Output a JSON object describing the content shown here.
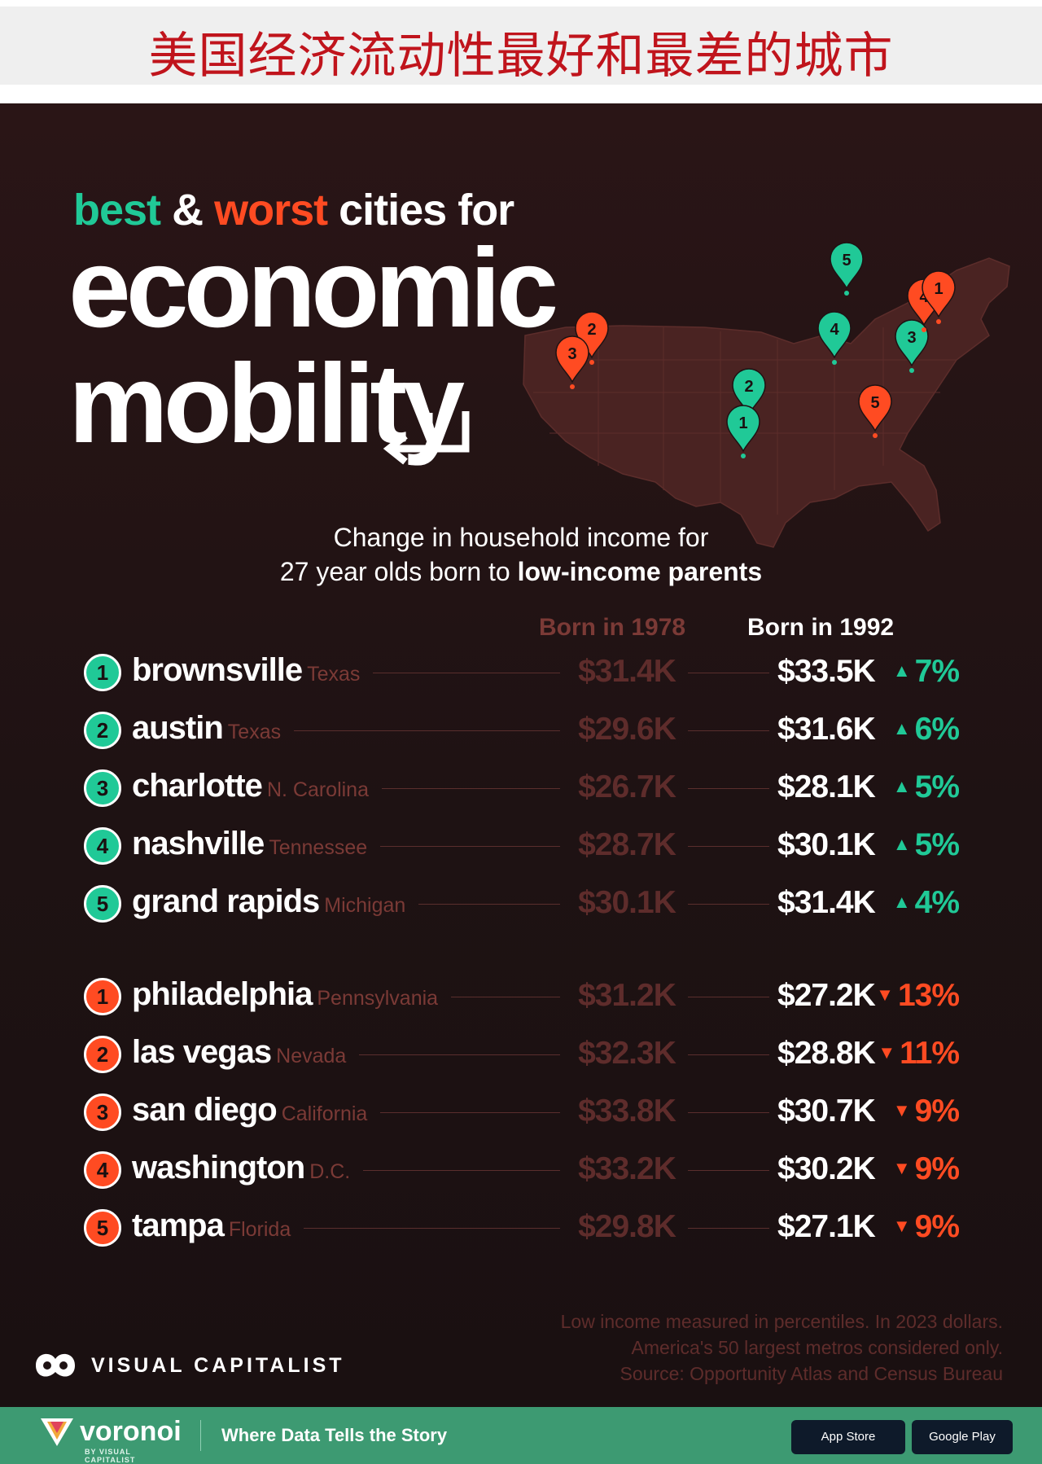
{
  "banner": {
    "title": "美国经济流动性最好和最差的城市"
  },
  "header": {
    "best_word": "best",
    "amp": "&",
    "worst_word": "worst",
    "rest": "cities for",
    "line2": "economic",
    "line3": "mobility"
  },
  "subtitle": {
    "line1": "Change in household income for",
    "line2_plain": "27 year olds born to",
    "line2_bold": "low-income parents"
  },
  "colors": {
    "best": "#20c997",
    "worst": "#ff4b22",
    "muted": "#7b3a36"
  },
  "chart_data": {
    "type": "table",
    "columns": [
      "Born in 1978",
      "Born in 1992"
    ],
    "best": [
      {
        "rank": "1",
        "city": "brownsville",
        "state": "Texas",
        "v1978": "$31.4K",
        "v1992": "$33.5K",
        "change": "7%",
        "direction": "up"
      },
      {
        "rank": "2",
        "city": "austin",
        "state": "Texas",
        "v1978": "$29.6K",
        "v1992": "$31.6K",
        "change": "6%",
        "direction": "up"
      },
      {
        "rank": "3",
        "city": "charlotte",
        "state": "N. Carolina",
        "v1978": "$26.7K",
        "v1992": "$28.1K",
        "change": "5%",
        "direction": "up"
      },
      {
        "rank": "4",
        "city": "nashville",
        "state": "Tennessee",
        "v1978": "$28.7K",
        "v1992": "$30.1K",
        "change": "5%",
        "direction": "up"
      },
      {
        "rank": "5",
        "city": "grand rapids",
        "state": "Michigan",
        "v1978": "$30.1K",
        "v1992": "$31.4K",
        "change": "4%",
        "direction": "up"
      }
    ],
    "worst": [
      {
        "rank": "1",
        "city": "philadelphia",
        "state": "Pennsylvania",
        "v1978": "$31.2K",
        "v1992": "$27.2K",
        "change": "13%",
        "direction": "down"
      },
      {
        "rank": "2",
        "city": "las vegas",
        "state": "Nevada",
        "v1978": "$32.3K",
        "v1992": "$28.8K",
        "change": "11%",
        "direction": "down"
      },
      {
        "rank": "3",
        "city": "san diego",
        "state": "California",
        "v1978": "$33.8K",
        "v1992": "$30.7K",
        "change": "9%",
        "direction": "down"
      },
      {
        "rank": "4",
        "city": "washington",
        "state": "D.C.",
        "v1978": "$33.2K",
        "v1992": "$30.2K",
        "change": "9%",
        "direction": "down"
      },
      {
        "rank": "5",
        "city": "tampa",
        "state": "Florida",
        "v1978": "$29.8K",
        "v1992": "$27.1K",
        "change": "9%",
        "direction": "down"
      }
    ]
  },
  "map": {
    "pins": [
      {
        "label": "5",
        "type": "best"
      },
      {
        "label": "4",
        "type": "best"
      },
      {
        "label": "3",
        "type": "best"
      },
      {
        "label": "2",
        "type": "best"
      },
      {
        "label": "1",
        "type": "best"
      },
      {
        "label": "2",
        "type": "worst"
      },
      {
        "label": "3",
        "type": "worst"
      },
      {
        "label": "5",
        "type": "worst"
      },
      {
        "label": "4",
        "type": "worst"
      },
      {
        "label": "1",
        "type": "worst"
      }
    ]
  },
  "footnote": [
    "Low income measured in percentiles. In 2023 dollars.",
    "America's 50 largest metros considered only.",
    "Source: Opportunity Atlas and Census Bureau"
  ],
  "brand": {
    "vc_name": "VISUAL CAPITALIST",
    "footer_name": "voronoi",
    "footer_by": "BY VISUAL CAPITALIST",
    "tagline": "Where Data Tells the Story",
    "badge1": "App Store",
    "badge2": "Google Play"
  }
}
